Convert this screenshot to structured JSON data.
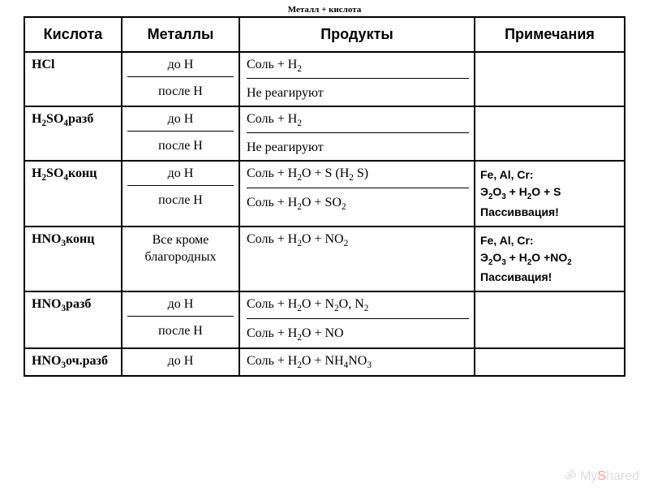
{
  "title": "Металл + кислота",
  "headers": {
    "c1": "Кислота",
    "c2": "Металлы",
    "c3": "Продукты",
    "c4": "Примечания"
  },
  "rows": {
    "hcl": {
      "acid": "HCl",
      "m1": "до Н",
      "p1": "Соль + H₂",
      "m2": "после Н",
      "p2": "Не реагируют",
      "notes": ""
    },
    "h2so4_razb": {
      "acid": "H₂SO₄разб",
      "m1": "до Н",
      "p1": "Соль + H₂",
      "m2": "после Н",
      "p2": "Не реагируют",
      "notes": ""
    },
    "h2so4_konc": {
      "acid": "H₂SO₄конц",
      "m1": "до Н",
      "p1": "Соль + H₂O + S (H₂ S)",
      "m2": "после Н",
      "p2": "Соль + H₂O + SO₂",
      "notes": "Fe, Al, Cr:\nЭ₂O₃ + H₂O + S\nПассиввация!"
    },
    "hno3_konc": {
      "acid": "HNO₃конц",
      "m1": "Все кроме благородных",
      "p1": "Соль + H₂O + NO₂",
      "notes": "Fe, Al, Cr:\nЭ₂O₃ + H₂O +NO₂\nПассивация!"
    },
    "hno3_razb": {
      "acid": "HNO₃разб",
      "m1": "до Н",
      "p1": "Соль + H₂O + N₂O, N₂",
      "m2": "после Н",
      "p2": "Соль + H₂O + NO",
      "notes": ""
    },
    "hno3_och": {
      "acid": "HNO₃оч.разб",
      "m1": "до Н",
      "p1": "Соль + H₂O + NH₄NO₃",
      "notes": ""
    }
  },
  "watermark": "MyShared"
}
